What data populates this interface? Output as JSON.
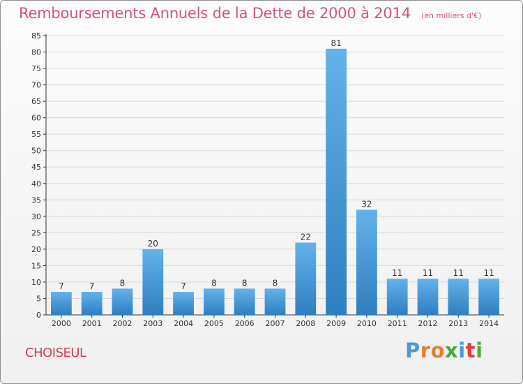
{
  "title": "Remboursements Annuels de la Dette de 2000 à 2014",
  "unit": "(en milliers d'€)",
  "commune": "CHOISEUL",
  "logo_text": "Proxiti",
  "colors": {
    "title": "#d2547d",
    "commune": "#d63a54",
    "bar_light": "#63b2ea",
    "bar_dark": "#2f7ec0",
    "grid": "#d8d8d8",
    "axis": "#333333",
    "logo_p": "#4b9ad8",
    "logo_r": "#e57f2f",
    "logo_o": "#e57f2f",
    "logo_x": "#4cab3f",
    "logo_i": "#4b9ad8",
    "logo_t": "#e23b3b",
    "logo_i2": "#4cab3f"
  },
  "chart_data": {
    "type": "bar",
    "categories": [
      "2000",
      "2001",
      "2002",
      "2003",
      "2004",
      "2005",
      "2006",
      "2007",
      "2008",
      "2009",
      "2010",
      "2011",
      "2012",
      "2013",
      "2014"
    ],
    "values": [
      7,
      7,
      8,
      20,
      7,
      8,
      8,
      8,
      22,
      81,
      32,
      11,
      11,
      11,
      11
    ],
    "ylim": [
      0,
      85
    ],
    "yticks": [
      0,
      5,
      10,
      15,
      20,
      25,
      30,
      35,
      40,
      45,
      50,
      55,
      60,
      65,
      70,
      75,
      80,
      85
    ],
    "grid": true
  }
}
